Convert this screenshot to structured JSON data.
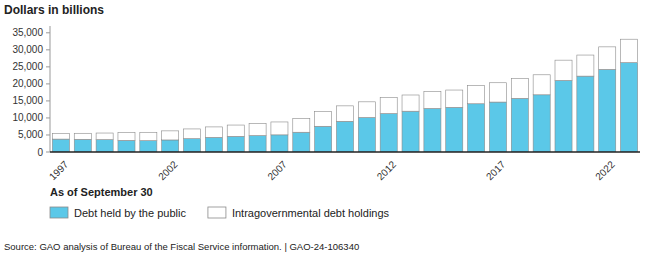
{
  "chart_data": {
    "type": "bar",
    "stacked": true,
    "title": "Dollars in billions",
    "xlabel": "As of September 30",
    "annotations": [
      "Source: GAO analysis of Bureau of the Fiscal Service information.  |  GAO-24-106340"
    ],
    "categories": [
      "1997",
      null,
      null,
      null,
      null,
      "2002",
      null,
      null,
      null,
      null,
      "2007",
      null,
      null,
      null,
      null,
      "2012",
      null,
      null,
      null,
      null,
      "2017",
      null,
      null,
      null,
      null,
      "2022",
      null
    ],
    "series": [
      {
        "name": "Debt held by the public",
        "color": "#5BC8E8",
        "values": [
          3790,
          3733,
          3633,
          3410,
          3320,
          3540,
          3913,
          4296,
          4601,
          4829,
          5035,
          5803,
          7552,
          9019,
          10128,
          11281,
          11982,
          12779,
          13117,
          14168,
          14665,
          15751,
          16801,
          21018,
          22282,
          24253,
          26244
        ]
      },
      {
        "name": "Intragovernmental debt holdings",
        "color": "#FFFFFF",
        "values": [
          1624,
          1762,
          1937,
          2269,
          2468,
          2665,
          2860,
          3071,
          3313,
          3543,
          3788,
          4006,
          4288,
          4530,
          4605,
          4770,
          4757,
          4996,
          5078,
          5413,
          5671,
          5869,
          5870,
          5952,
          6189,
          6620,
          6877
        ]
      }
    ],
    "ylim": [
      0,
      37000
    ],
    "yticks": [
      0,
      {
        "value": 5000,
        "label": "5,000"
      },
      {
        "value": 10000,
        "label": "10,000"
      },
      {
        "value": 15000,
        "label": "15,000"
      },
      {
        "value": 20000,
        "label": "20,000"
      },
      {
        "value": 25000,
        "label": "25,000"
      },
      {
        "value": 30000,
        "label": "30,000"
      },
      {
        "value": 35000,
        "label": "35,000"
      }
    ],
    "grid": false,
    "legend": "bottom"
  }
}
